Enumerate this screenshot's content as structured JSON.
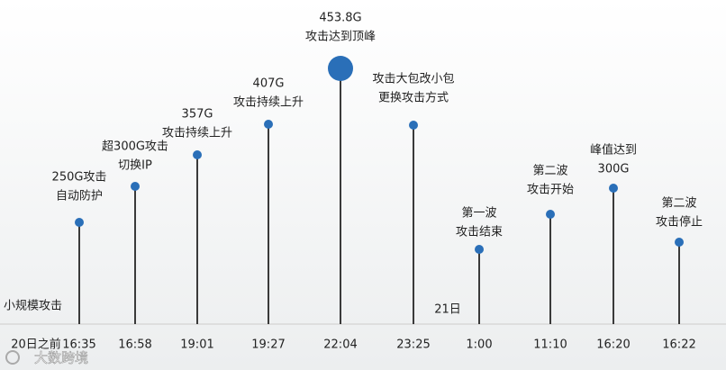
{
  "left_note": "小规模攻击",
  "day_label": "21日",
  "time_axis": [
    "20日之前",
    "16:35",
    "16:58",
    "19:01",
    "19:27",
    "22:04",
    "23:25",
    "1:00",
    "11:10",
    "16:20",
    "16:22"
  ],
  "events": [
    {
      "lines": [
        "250G攻击",
        "自动防护"
      ]
    },
    {
      "lines": [
        "超300G攻击",
        "切换IP"
      ]
    },
    {
      "lines": [
        "357G",
        "攻击持续上升"
      ]
    },
    {
      "lines": [
        "407G",
        "攻击持续上升"
      ]
    },
    {
      "lines": [
        "453.8G",
        "攻击达到顶峰"
      ]
    },
    {
      "lines": [
        "攻击大包改小包",
        "更换攻击方式"
      ]
    },
    {
      "lines": [
        "第一波",
        "攻击结束"
      ]
    },
    {
      "lines": [
        "第二波",
        "攻击开始"
      ]
    },
    {
      "lines": [
        "峰值达到",
        "300G"
      ]
    },
    {
      "lines": [
        "第二波",
        "攻击停止"
      ]
    }
  ],
  "watermark": "大数跨境"
}
